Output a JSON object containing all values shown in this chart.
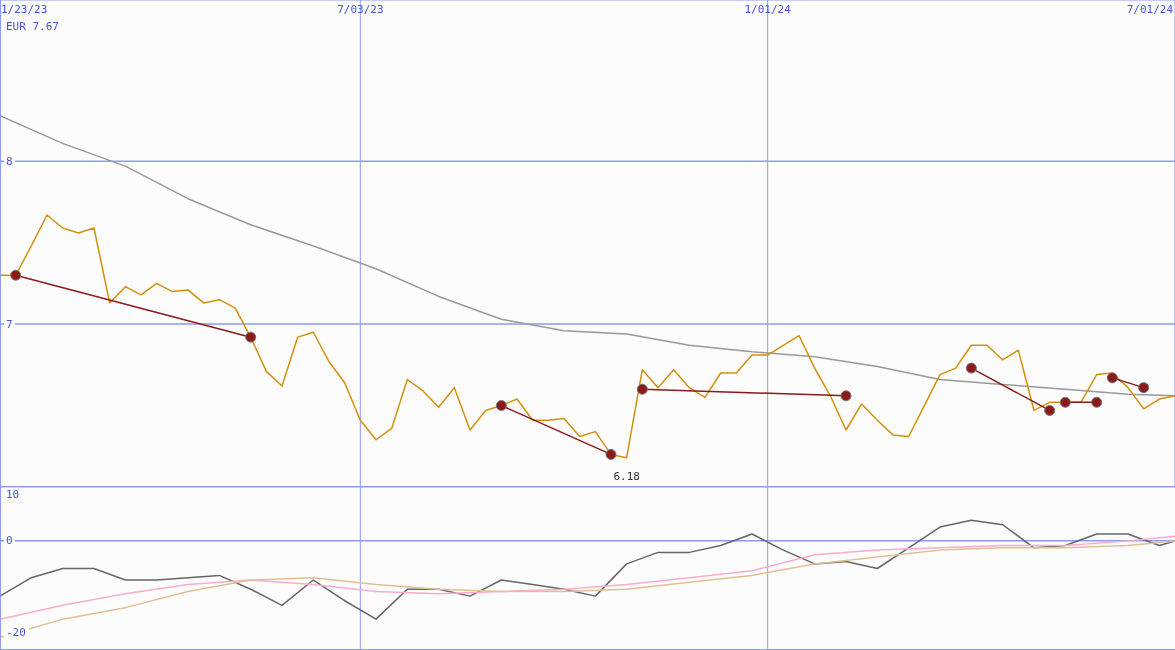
{
  "chart_data": [
    {
      "type": "line",
      "annotations": [
        "EUR 7.67",
        {
          "text": "6.18",
          "x": "2023-10-30",
          "y": 6.18
        }
      ],
      "x": [
        "2023-01-23",
        "2023-01-30",
        "2023-02-06",
        "2023-02-13",
        "2023-02-20",
        "2023-02-27",
        "2023-03-06",
        "2023-03-13",
        "2023-03-20",
        "2023-03-27",
        "2023-04-03",
        "2023-04-10",
        "2023-04-17",
        "2023-04-24",
        "2023-05-01",
        "2023-05-08",
        "2023-05-15",
        "2023-05-22",
        "2023-05-29",
        "2023-06-05",
        "2023-06-12",
        "2023-06-19",
        "2023-06-26",
        "2023-07-03",
        "2023-07-10",
        "2023-07-17",
        "2023-07-24",
        "2023-07-31",
        "2023-08-07",
        "2023-08-14",
        "2023-08-21",
        "2023-08-28",
        "2023-09-04",
        "2023-09-11",
        "2023-09-18",
        "2023-09-25",
        "2023-10-02",
        "2023-10-09",
        "2023-10-16",
        "2023-10-23",
        "2023-10-30",
        "2023-11-06",
        "2023-11-13",
        "2023-11-20",
        "2023-11-27",
        "2023-12-04",
        "2023-12-11",
        "2023-12-18",
        "2023-12-25",
        "2024-01-01",
        "2024-01-08",
        "2024-01-15",
        "2024-01-22",
        "2024-01-29",
        "2024-02-05",
        "2024-02-12",
        "2024-02-19",
        "2024-02-26",
        "2024-03-04",
        "2024-03-11",
        "2024-03-18",
        "2024-03-25",
        "2024-04-01",
        "2024-04-08",
        "2024-04-15",
        "2024-04-22",
        "2024-04-29",
        "2024-05-06",
        "2024-05-13",
        "2024-05-20",
        "2024-05-27",
        "2024-06-03",
        "2024-06-10",
        "2024-06-17",
        "2024-06-24",
        "2024-07-01"
      ],
      "series": [
        {
          "color": "#999999",
          "x": [
            "2023-01-23",
            "2023-02-20",
            "2023-03-20",
            "2023-04-17",
            "2023-05-15",
            "2023-06-12",
            "2023-07-10",
            "2023-08-07",
            "2023-09-04",
            "2023-10-02",
            "2023-10-30",
            "2023-11-27",
            "2023-12-25",
            "2024-01-22",
            "2024-02-19",
            "2024-03-18",
            "2024-04-15",
            "2024-05-13",
            "2024-06-10",
            "2024-07-01"
          ],
          "values": [
            8.28,
            8.11,
            7.97,
            7.77,
            7.61,
            7.48,
            7.34,
            7.17,
            7.03,
            6.96,
            6.94,
            6.87,
            6.83,
            6.8,
            6.74,
            6.66,
            6.63,
            6.6,
            6.57,
            6.56
          ]
        },
        {
          "color": "#d4900a",
          "values": [
            7.3,
            7.3,
            7.48,
            7.67,
            7.59,
            7.56,
            7.59,
            7.13,
            7.23,
            7.18,
            7.25,
            7.2,
            7.21,
            7.13,
            7.15,
            7.1,
            6.92,
            6.71,
            6.62,
            6.92,
            6.95,
            6.77,
            6.64,
            6.41,
            6.29,
            6.36,
            6.66,
            6.59,
            6.49,
            6.61,
            6.35,
            6.47,
            6.5,
            6.54,
            6.41,
            6.41,
            6.42,
            6.31,
            6.34,
            6.2,
            6.18,
            6.72,
            6.61,
            6.72,
            6.61,
            6.55,
            6.7,
            6.7,
            6.81,
            6.81,
            6.87,
            6.93,
            6.73,
            6.56,
            6.35,
            6.51,
            6.41,
            6.32,
            6.31,
            6.5,
            6.69,
            6.73,
            6.87,
            6.87,
            6.78,
            6.84,
            6.47,
            6.52,
            6.52,
            6.52,
            6.69,
            6.7,
            6.61,
            6.48,
            6.54,
            6.56
          ]
        },
        {
          "color": "#8b1a1a",
          "marker": "circle",
          "x": [
            "2023-01-30",
            "2023-05-15",
            "2023-07-03",
            "2023-09-04",
            "2023-10-23",
            "2023-10-30",
            "2023-11-06",
            "2024-02-05",
            "2024-03-04",
            "2024-04-01",
            "2024-05-06",
            "2024-05-09",
            "2024-05-13",
            "2024-05-27",
            "2024-05-30",
            "2024-06-03",
            "2024-06-17"
          ],
          "values": [
            7.3,
            6.92,
            null,
            6.5,
            6.2,
            null,
            6.6,
            6.56,
            null,
            6.73,
            6.47,
            null,
            6.52,
            6.52,
            null,
            6.67,
            6.61
          ]
        }
      ],
      "xlim": [
        "2023-01-23",
        "2024-07-01"
      ],
      "xticks": [
        {
          "value": "2023-01-23",
          "label": "1/23/23"
        },
        {
          "value": "2023-07-03",
          "label": "7/03/23"
        },
        {
          "value": "2024-01-01",
          "label": "1/01/24"
        },
        {
          "value": "2024-07-01",
          "label": "7/01/24"
        }
      ],
      "ylim": [
        6.0,
        8.99
      ],
      "yticks": [
        7,
        8
      ],
      "grid": true
    },
    {
      "type": "line",
      "series": [
        {
          "color": "#666666",
          "x": [
            "2023-01-23",
            "2023-02-06",
            "2023-02-20",
            "2023-03-06",
            "2023-03-20",
            "2023-04-03",
            "2023-04-17",
            "2023-05-01",
            "2023-05-15",
            "2023-05-29",
            "2023-06-12",
            "2023-06-26",
            "2023-07-10",
            "2023-07-24",
            "2023-08-07",
            "2023-08-21",
            "2023-09-04",
            "2023-09-18",
            "2023-10-02",
            "2023-10-16",
            "2023-10-30",
            "2023-11-13",
            "2023-11-27",
            "2023-12-11",
            "2023-12-25",
            "2024-01-08",
            "2024-01-22",
            "2024-02-05",
            "2024-02-19",
            "2024-03-04",
            "2024-03-18",
            "2024-04-01",
            "2024-04-15",
            "2024-04-29",
            "2024-05-13",
            "2024-05-27",
            "2024-06-10",
            "2024-06-24",
            "2024-07-01"
          ],
          "values": [
            -12,
            -8,
            -6,
            -6,
            -8.5,
            -8.5,
            -8,
            -7.5,
            -10.5,
            -14,
            -8.5,
            -13,
            -17,
            -10.5,
            -10.5,
            -12,
            -8.5,
            -9.5,
            -10.5,
            -12,
            -5,
            -2.5,
            -2.5,
            -1,
            1.5,
            -2,
            -5,
            -4.5,
            -6,
            -1.5,
            3,
            4.5,
            3.5,
            -1.5,
            -1,
            1.5,
            1.5,
            -1,
            0
          ]
        },
        {
          "color": "#ffaacc",
          "x": [
            "2023-01-23",
            "2023-02-20",
            "2023-03-20",
            "2023-04-17",
            "2023-05-15",
            "2023-06-12",
            "2023-07-10",
            "2023-08-07",
            "2023-09-04",
            "2023-10-02",
            "2023-10-30",
            "2023-11-27",
            "2023-12-25",
            "2024-01-22",
            "2024-02-19",
            "2024-03-18",
            "2024-04-15",
            "2024-05-13",
            "2024-06-10",
            "2024-07-01"
          ],
          "values": [
            -17,
            -14,
            -11.5,
            -9.5,
            -8.5,
            -9.5,
            -11,
            -11.5,
            -11,
            -10.5,
            -9.5,
            -8,
            -6.5,
            -3,
            -2,
            -1.5,
            -1,
            -1,
            0,
            1
          ]
        },
        {
          "color": "#e0c090",
          "x": [
            "2023-01-23",
            "2023-02-20",
            "2023-03-20",
            "2023-04-17",
            "2023-05-15",
            "2023-06-12",
            "2023-07-10",
            "2023-08-07",
            "2023-09-04",
            "2023-10-02",
            "2023-10-30",
            "2023-11-27",
            "2023-12-25",
            "2024-01-22",
            "2024-02-19",
            "2024-03-18",
            "2024-04-15",
            "2024-05-13",
            "2024-06-10",
            "2024-07-01"
          ],
          "values": [
            -21,
            -17,
            -14.5,
            -11,
            -8.5,
            -8,
            -9.5,
            -10.5,
            -11,
            -11,
            -10.5,
            -9,
            -7.5,
            -5,
            -3.5,
            -2,
            -1.5,
            -1.5,
            -1,
            0
          ]
        }
      ],
      "xlim": [
        "2023-01-23",
        "2024-07-01"
      ],
      "ylim": [
        -23.7,
        11.7
      ],
      "yticks": [
        -20,
        0,
        10
      ],
      "tick_labels": "y",
      "ref_lines": [
        {
          "axis": "y",
          "value": 0
        },
        {
          "axis": "x",
          "value": "2023-07-03"
        },
        {
          "axis": "x",
          "value": "2024-01-01"
        }
      ]
    }
  ]
}
